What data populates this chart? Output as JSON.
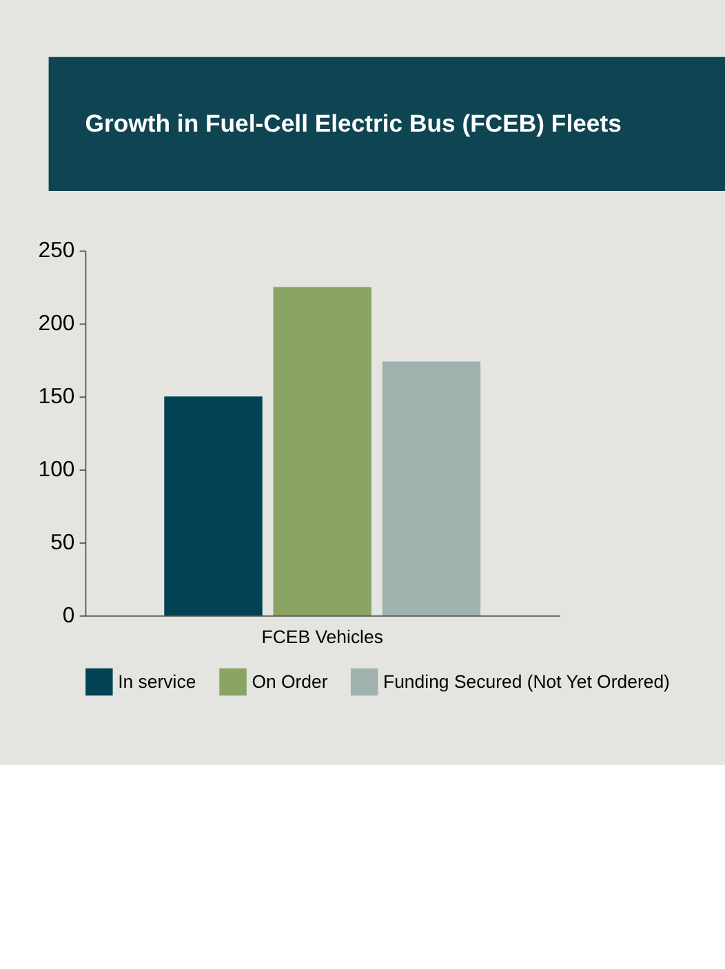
{
  "chart_data": {
    "type": "bar",
    "title": "Growth in Fuel-Cell Electric Bus (FCEB) Fleets",
    "categories": [
      "FCEB Vehicles"
    ],
    "series": [
      {
        "name": "In service",
        "color": "#014352",
        "values": [
          150
        ]
      },
      {
        "name": "On Order",
        "color": "#8aa463",
        "values": [
          225
        ]
      },
      {
        "name": "Funding Secured (Not Yet Ordered)",
        "color": "#a0b2ae",
        "values": [
          174
        ]
      }
    ],
    "ylim": [
      0,
      250
    ],
    "yticks": [
      0,
      50,
      100,
      150,
      200,
      250
    ],
    "grid": false,
    "legend": "bottom"
  }
}
